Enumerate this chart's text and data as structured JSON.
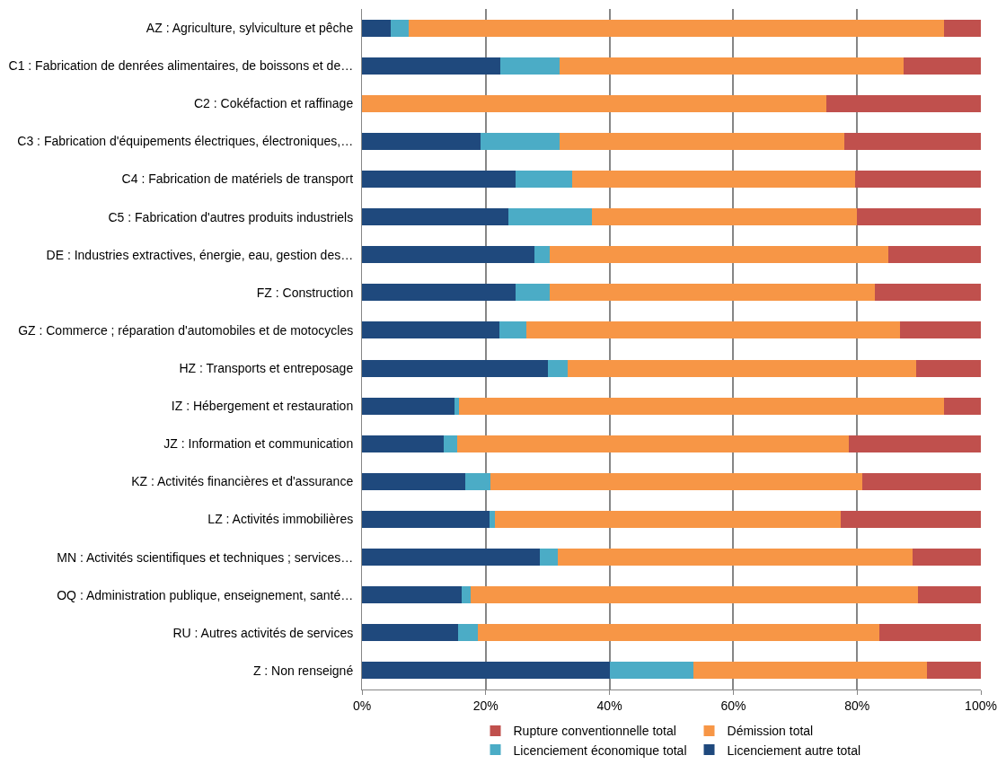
{
  "chart_data": {
    "type": "bar",
    "orientation": "horizontal",
    "stacked": true,
    "categories": [
      "AZ : Agriculture, sylviculture et pêche",
      "C1 : Fabrication de denrées alimentaires, de boissons et de…",
      "C2 : Cokéfaction et raffinage",
      "C3 : Fabrication d'équipements électriques, électroniques,…",
      "C4 : Fabrication de matériels de transport",
      "C5 : Fabrication d'autres produits industriels",
      "DE : Industries extractives, énergie, eau, gestion des…",
      "FZ : Construction",
      "GZ : Commerce ; réparation d'automobiles et de motocycles",
      "HZ : Transports et entreposage",
      "IZ : Hébergement et restauration",
      "JZ : Information et communication",
      "KZ : Activités financières et d'assurance",
      "LZ : Activités immobilières",
      "MN : Activités scientifiques et techniques ; services…",
      "OQ : Administration publique, enseignement, santé…",
      "RU : Autres activités de services",
      "Z : Non renseigné"
    ],
    "series": [
      {
        "name": "Licenciement autre total",
        "color": "#1f497d",
        "values": [
          4.6,
          22.3,
          0,
          19.1,
          24.8,
          23.7,
          27.9,
          24.8,
          22.2,
          30.1,
          15.0,
          13.2,
          16.7,
          20.6,
          28.7,
          16.1,
          15.6,
          40.0
        ]
      },
      {
        "name": "Licenciement économique total",
        "color": "#4bacc6",
        "values": [
          3.0,
          9.7,
          0,
          12.9,
          9.1,
          13.5,
          2.4,
          5.5,
          4.4,
          3.2,
          0.7,
          2.2,
          4.1,
          0.9,
          2.9,
          1.5,
          3.1,
          13.6
        ]
      },
      {
        "name": "Démission total",
        "color": "#f79646",
        "values": [
          86.5,
          55.5,
          75.1,
          46.0,
          45.8,
          42.8,
          54.7,
          52.6,
          60.3,
          56.2,
          78.3,
          63.2,
          60.0,
          55.8,
          57.4,
          72.3,
          64.9,
          37.7
        ]
      },
      {
        "name": "Rupture conventionnelle total",
        "color": "#c0504d",
        "values": [
          5.9,
          12.5,
          24.9,
          22.0,
          20.3,
          20.0,
          15.0,
          17.1,
          13.1,
          10.5,
          6.0,
          21.4,
          19.2,
          22.7,
          11.0,
          10.1,
          16.4,
          8.7
        ]
      }
    ],
    "xlim": [
      0,
      100
    ],
    "xticks": [
      {
        "value": 0,
        "label": "0%"
      },
      {
        "value": 20,
        "label": "20%"
      },
      {
        "value": 40,
        "label": "40%"
      },
      {
        "value": 60,
        "label": "60%"
      },
      {
        "value": 80,
        "label": "80%"
      },
      {
        "value": 100,
        "label": "100%"
      }
    ],
    "grid": "x",
    "legend": "bottom"
  }
}
